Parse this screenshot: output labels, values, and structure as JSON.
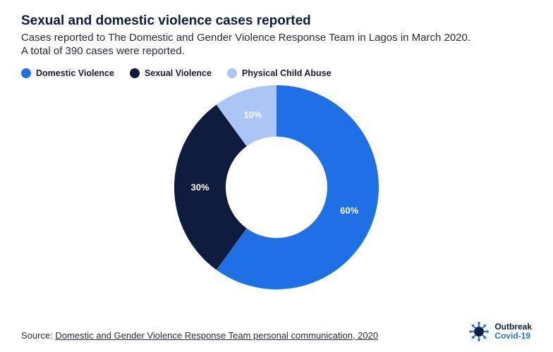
{
  "title": "Sexual and domestic violence cases reported",
  "subtitle": "Cases reported to The Domestic and Gender Violence Response Team in Lagos in March 2020. A total of 390 cases were reported.",
  "chart": {
    "type": "donut",
    "background_color": "#ffffff",
    "outer_radius": 145,
    "inner_radius": 72,
    "start_angle_deg": 0,
    "label_fontsize": 13,
    "label_color": "#ffffff",
    "slices": [
      {
        "name": "Domestic Violence",
        "value": 60,
        "label": "60%",
        "color": "#1f6fe5"
      },
      {
        "name": "Sexual Violence",
        "value": 30,
        "label": "30%",
        "color": "#0f1b3d"
      },
      {
        "name": "Physical Child Abuse",
        "value": 10,
        "label": "10%",
        "color": "#a9c6f5"
      }
    ]
  },
  "legend": {
    "position": "top-left",
    "fontsize": 12.5,
    "items": [
      {
        "label": "Domestic Violence",
        "color": "#1f6fe5"
      },
      {
        "label": "Sexual Violence",
        "color": "#0f1b3d"
      },
      {
        "label": "Physical Child Abuse",
        "color": "#a9c6f5"
      }
    ]
  },
  "source": {
    "prefix": "Source: ",
    "link_text": "Domestic and Gender Violence Response Team personal communication, 2020"
  },
  "brand": {
    "line1": "Outbreak",
    "line2": "Covid-19",
    "icon_color_primary": "#1f6fe5",
    "icon_color_secondary": "#0f1b3d"
  },
  "typography": {
    "title_fontsize": 19,
    "title_weight": 800,
    "subtitle_fontsize": 15,
    "source_fontsize": 13,
    "font_family": "system-ui"
  }
}
